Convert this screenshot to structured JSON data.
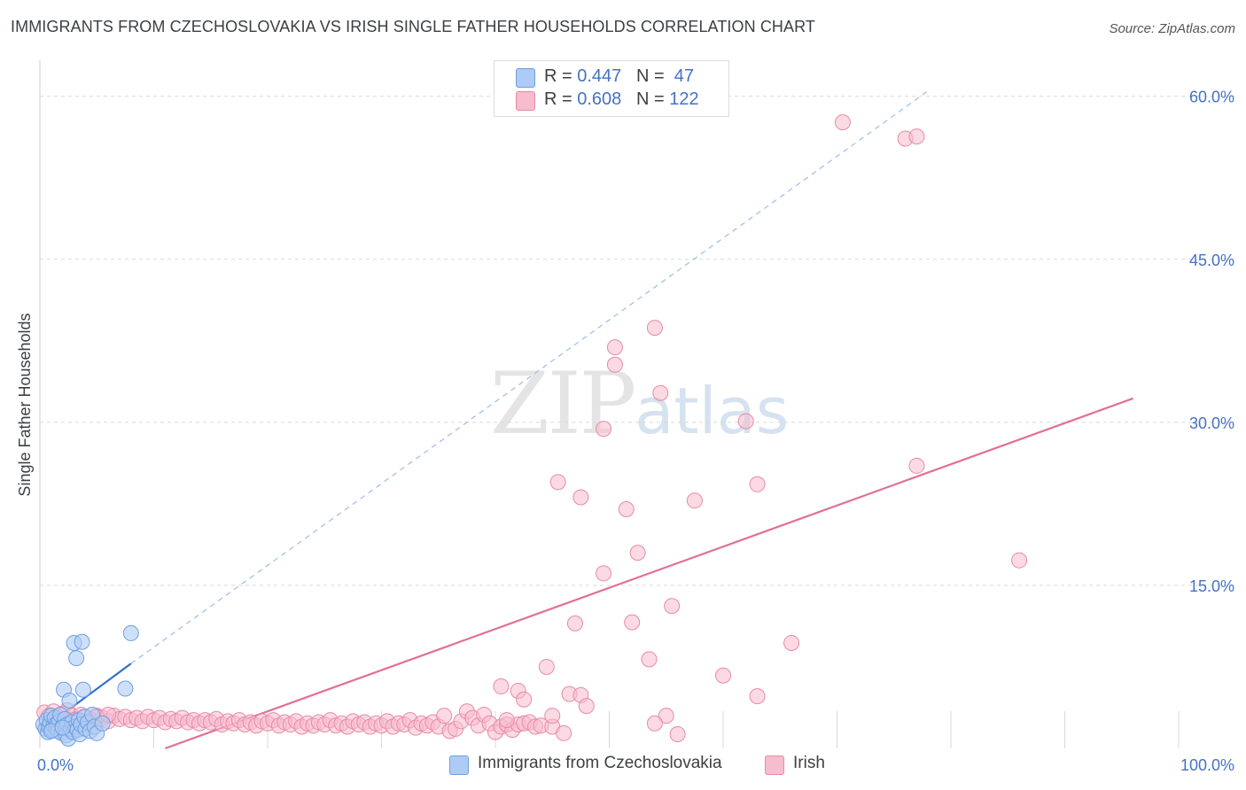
{
  "header": {
    "title": "IMMIGRANTS FROM CZECHOSLOVAKIA VS IRISH SINGLE FATHER HOUSEHOLDS CORRELATION CHART",
    "source": "Source: ZipAtlas.com"
  },
  "legend": {
    "rows": [
      {
        "r_label": "R =",
        "r_value": "0.447",
        "n_label": "N =",
        "n_value": "47"
      },
      {
        "r_label": "R =",
        "r_value": "0.608",
        "n_label": "N =",
        "n_value": "122"
      }
    ]
  },
  "bottom_legend": [
    "Immigrants from Czechoslovakia",
    "Irish"
  ],
  "watermark": {
    "zip": "ZIP",
    "atlas": "atlas"
  },
  "colors": {
    "blue_fill": "#aecbf5",
    "blue_stroke": "#6f9fde",
    "blue_line": "#2f6fd0",
    "pink_fill": "#f7bccd",
    "pink_stroke": "#e88aa6",
    "pink_line": "#e26f97",
    "tick_label": "#4472c4",
    "grid": "#d9d9d9"
  },
  "chart_data": {
    "type": "scatter",
    "title": "IMMIGRANTS FROM CZECHOSLOVAKIA VS IRISH SINGLE FATHER HOUSEHOLDS CORRELATION CHART",
    "xlabel": "",
    "ylabel": "Single Father Households",
    "xlim": [
      0,
      100
    ],
    "ylim": [
      0,
      62.5
    ],
    "x_tick_labels": [
      "0.0%",
      "100.0%"
    ],
    "y_ticks": [
      15,
      30,
      45,
      60
    ],
    "y_tick_labels": [
      "15.0%",
      "30.0%",
      "45.0%",
      "60.0%"
    ],
    "grid": true,
    "series": [
      {
        "name": "Immigrants from Czechoslovakia",
        "color": "blue",
        "r": 0.447,
        "n": 47,
        "trend": {
          "x": [
            0,
            8
          ],
          "y": [
            1.6,
            7.8
          ],
          "extended_to": [
            78,
            60.5
          ]
        },
        "points": [
          [
            0.3,
            2.2
          ],
          [
            0.5,
            1.8
          ],
          [
            0.6,
            2.6
          ],
          [
            0.7,
            1.5
          ],
          [
            0.8,
            2.0
          ],
          [
            0.9,
            2.4
          ],
          [
            1.0,
            3.0
          ],
          [
            1.1,
            1.7
          ],
          [
            1.2,
            2.1
          ],
          [
            1.3,
            2.8
          ],
          [
            1.4,
            1.9
          ],
          [
            1.5,
            2.3
          ],
          [
            1.6,
            1.6
          ],
          [
            1.7,
            2.5
          ],
          [
            1.8,
            3.1
          ],
          [
            1.9,
            1.4
          ],
          [
            2.0,
            2.0
          ],
          [
            2.1,
            5.4
          ],
          [
            2.2,
            2.7
          ],
          [
            2.3,
            1.2
          ],
          [
            2.4,
            2.2
          ],
          [
            2.5,
            0.9
          ],
          [
            2.6,
            4.4
          ],
          [
            2.7,
            1.8
          ],
          [
            2.8,
            2.4
          ],
          [
            2.9,
            1.5
          ],
          [
            3.0,
            9.7
          ],
          [
            3.1,
            2.0
          ],
          [
            3.2,
            8.3
          ],
          [
            3.3,
            1.7
          ],
          [
            3.4,
            2.6
          ],
          [
            3.5,
            1.3
          ],
          [
            3.6,
            2.2
          ],
          [
            3.7,
            9.8
          ],
          [
            3.8,
            5.4
          ],
          [
            3.9,
            2.9
          ],
          [
            4.0,
            1.8
          ],
          [
            4.2,
            2.4
          ],
          [
            4.4,
            1.6
          ],
          [
            4.6,
            3.1
          ],
          [
            4.8,
            2.0
          ],
          [
            5.0,
            1.4
          ],
          [
            5.5,
            2.3
          ],
          [
            7.5,
            5.5
          ],
          [
            8.0,
            10.6
          ],
          [
            1.0,
            1.6
          ],
          [
            2.0,
            1.9
          ]
        ]
      },
      {
        "name": "Irish",
        "color": "pink",
        "r": 0.608,
        "n": 122,
        "trend": {
          "x": [
            11,
            96
          ],
          "y": [
            0,
            32.2
          ]
        },
        "points": [
          [
            0.4,
            3.3
          ],
          [
            0.8,
            3.0
          ],
          [
            1.2,
            3.4
          ],
          [
            1.6,
            2.9
          ],
          [
            2.0,
            3.2
          ],
          [
            2.4,
            3.5
          ],
          [
            2.8,
            3.0
          ],
          [
            3.2,
            2.7
          ],
          [
            3.6,
            3.1
          ],
          [
            4.0,
            2.9
          ],
          [
            4.5,
            2.6
          ],
          [
            5.0,
            3.0
          ],
          [
            5.5,
            2.8
          ],
          [
            6.0,
            2.5
          ],
          [
            6.5,
            3.0
          ],
          [
            7.0,
            2.7
          ],
          [
            7.5,
            2.9
          ],
          [
            8.0,
            2.6
          ],
          [
            8.5,
            2.8
          ],
          [
            9.0,
            2.5
          ],
          [
            9.5,
            2.9
          ],
          [
            10.0,
            2.6
          ],
          [
            10.5,
            2.8
          ],
          [
            11.0,
            2.4
          ],
          [
            11.5,
            2.7
          ],
          [
            12.0,
            2.5
          ],
          [
            12.5,
            2.8
          ],
          [
            13.0,
            2.4
          ],
          [
            13.5,
            2.6
          ],
          [
            14.0,
            2.3
          ],
          [
            14.5,
            2.6
          ],
          [
            15.0,
            2.4
          ],
          [
            15.5,
            2.7
          ],
          [
            16.0,
            2.2
          ],
          [
            16.5,
            2.5
          ],
          [
            17.0,
            2.3
          ],
          [
            17.5,
            2.6
          ],
          [
            18.0,
            2.2
          ],
          [
            18.5,
            2.4
          ],
          [
            19.0,
            2.1
          ],
          [
            19.5,
            2.5
          ],
          [
            20.0,
            2.3
          ],
          [
            20.5,
            2.6
          ],
          [
            21.0,
            2.1
          ],
          [
            21.5,
            2.4
          ],
          [
            22.0,
            2.2
          ],
          [
            22.5,
            2.5
          ],
          [
            23.0,
            2.0
          ],
          [
            23.5,
            2.3
          ],
          [
            24.0,
            2.1
          ],
          [
            24.5,
            2.4
          ],
          [
            25.0,
            2.2
          ],
          [
            25.5,
            2.6
          ],
          [
            26.0,
            2.1
          ],
          [
            26.5,
            2.3
          ],
          [
            27.0,
            2.0
          ],
          [
            27.5,
            2.5
          ],
          [
            28.0,
            2.2
          ],
          [
            28.5,
            2.4
          ],
          [
            29.0,
            2.0
          ],
          [
            29.5,
            2.3
          ],
          [
            30.0,
            2.1
          ],
          [
            30.5,
            2.5
          ],
          [
            31.0,
            2.0
          ],
          [
            31.5,
            2.3
          ],
          [
            32.0,
            2.2
          ],
          [
            32.5,
            2.6
          ],
          [
            33.0,
            1.9
          ],
          [
            33.5,
            2.3
          ],
          [
            34.0,
            2.1
          ],
          [
            34.5,
            2.4
          ],
          [
            35.0,
            2.0
          ],
          [
            35.5,
            3.0
          ],
          [
            36.0,
            1.6
          ],
          [
            36.5,
            1.8
          ],
          [
            37.0,
            2.5
          ],
          [
            37.5,
            3.4
          ],
          [
            38.0,
            2.8
          ],
          [
            38.5,
            2.1
          ],
          [
            39.0,
            3.1
          ],
          [
            39.5,
            2.3
          ],
          [
            40.0,
            1.5
          ],
          [
            40.5,
            2.0
          ],
          [
            41.0,
            2.2
          ],
          [
            41.5,
            1.7
          ],
          [
            42.0,
            2.2
          ],
          [
            42.5,
            2.3
          ],
          [
            43.0,
            2.4
          ],
          [
            43.5,
            2.0
          ],
          [
            44.0,
            2.1
          ],
          [
            40.5,
            5.7
          ],
          [
            42.0,
            5.3
          ],
          [
            42.5,
            4.5
          ],
          [
            44.5,
            7.5
          ],
          [
            45.0,
            2.0
          ],
          [
            46.0,
            1.4
          ],
          [
            46.5,
            5.0
          ],
          [
            47.0,
            11.5
          ],
          [
            47.5,
            4.9
          ],
          [
            48.0,
            3.9
          ],
          [
            45.5,
            24.5
          ],
          [
            47.5,
            23.1
          ],
          [
            49.5,
            16.1
          ],
          [
            49.5,
            29.4
          ],
          [
            50.5,
            35.3
          ],
          [
            50.5,
            36.9
          ],
          [
            51.5,
            22.0
          ],
          [
            52.5,
            18.0
          ],
          [
            52.0,
            11.6
          ],
          [
            53.5,
            8.2
          ],
          [
            54.0,
            38.7
          ],
          [
            54.5,
            32.7
          ],
          [
            55.5,
            13.1
          ],
          [
            55.0,
            3.0
          ],
          [
            54.0,
            2.3
          ],
          [
            56.0,
            1.3
          ],
          [
            57.5,
            22.8
          ],
          [
            60.0,
            6.7
          ],
          [
            62.0,
            30.1
          ],
          [
            63.0,
            24.3
          ],
          [
            63.0,
            4.8
          ],
          [
            66.0,
            9.7
          ],
          [
            70.5,
            57.6
          ],
          [
            76.0,
            56.1
          ],
          [
            77.0,
            56.3
          ],
          [
            77.0,
            26.0
          ],
          [
            86.0,
            17.3
          ],
          [
            3.0,
            2.6
          ],
          [
            5.0,
            2.9
          ],
          [
            6.0,
            3.1
          ],
          [
            45.0,
            3.0
          ],
          [
            41.0,
            2.6
          ]
        ]
      }
    ]
  }
}
